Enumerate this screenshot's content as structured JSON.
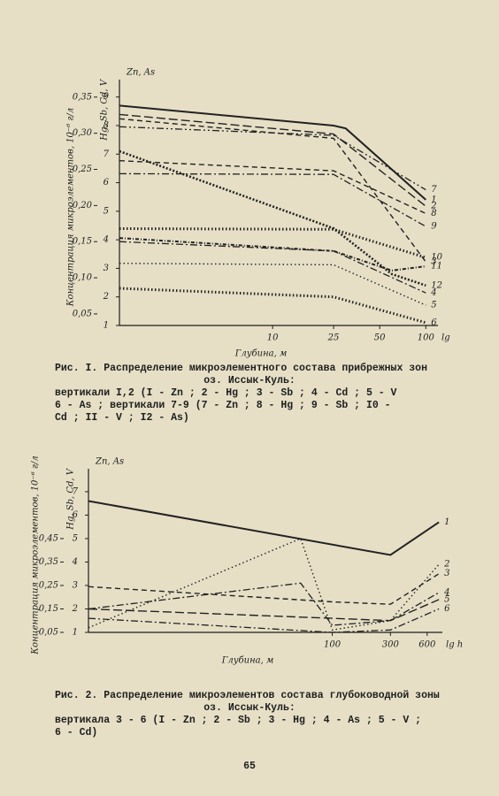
{
  "chart_data": [
    {
      "type": "line",
      "color": "#222222",
      "log_x": true,
      "grid": false,
      "y_label": "Zn, As",
      "y2_label": "Hg, Sb, Cd, V",
      "y_title": "Концентрация микроэлементов, 10⁻⁶ г/л",
      "x_label": "Глубина, м",
      "x_unit": "lg",
      "xlim": [
        1,
        120
      ],
      "xticks": [
        10,
        25,
        50,
        100
      ],
      "ylim": [
        1,
        9.3
      ],
      "yticks": [
        1,
        2,
        3,
        4,
        5,
        6,
        7,
        8,
        9
      ],
      "y2lim": [
        0.034,
        0.362
      ],
      "y2ticks": [
        {
          "value": 0.05,
          "label": "0,05"
        },
        {
          "value": 0.1,
          "label": "0,10"
        },
        {
          "value": 0.15,
          "label": "0,15"
        },
        {
          "value": 0.2,
          "label": "0,20"
        },
        {
          "value": 0.25,
          "label": "0,25"
        },
        {
          "value": 0.3,
          "label": "0,30"
        },
        {
          "value": 0.35,
          "label": "0,35"
        }
      ],
      "series": [
        {
          "name": "1",
          "style": "solid-heavy",
          "axis": "y",
          "x": [
            1,
            25,
            30,
            100
          ],
          "values": [
            8.7,
            8.0,
            7.9,
            5.4
          ]
        },
        {
          "name": "2",
          "style": "long-dash",
          "axis": "y2",
          "x": [
            1,
            25,
            100
          ],
          "values": [
            0.326,
            0.299,
            0.199
          ]
        },
        {
          "name": "3",
          "style": "dashed",
          "axis": "y2",
          "x": [
            1,
            25,
            100
          ],
          "values": [
            0.32,
            0.293,
            0.122
          ]
        },
        {
          "name": "4",
          "style": "dash-dot",
          "axis": "y2",
          "x": [
            1,
            25,
            100
          ],
          "values": [
            0.15,
            0.137,
            0.079
          ]
        },
        {
          "name": "5",
          "style": "dotted",
          "axis": "y2",
          "x": [
            1,
            25,
            100
          ],
          "values": [
            0.12,
            0.118,
            0.062
          ]
        },
        {
          "name": "6",
          "style": "crossed",
          "axis": "y",
          "x": [
            1,
            25,
            100
          ],
          "values": [
            2.3,
            2.0,
            1.1
          ]
        },
        {
          "name": "7",
          "style": "dash-dot-dot",
          "axis": "y",
          "x": [
            1,
            25,
            100
          ],
          "values": [
            7.96,
            7.66,
            5.75
          ]
        },
        {
          "name": "8",
          "style": "dashed",
          "axis": "y2",
          "x": [
            1,
            25,
            100
          ],
          "values": [
            0.262,
            0.248,
            0.189
          ]
        },
        {
          "name": "9",
          "style": "dash-dot",
          "axis": "y2",
          "x": [
            1,
            25,
            100
          ],
          "values": [
            0.244,
            0.243,
            0.171
          ]
        },
        {
          "name": "10",
          "style": "crossed",
          "axis": "y2",
          "x": [
            1,
            25,
            100
          ],
          "values": [
            0.168,
            0.167,
            0.128
          ]
        },
        {
          "name": "11",
          "style": "triangle",
          "axis": "y2",
          "x": [
            1,
            25,
            60,
            100
          ],
          "values": [
            0.155,
            0.137,
            0.11,
            0.116
          ]
        },
        {
          "name": "12",
          "style": "heavy-dotted",
          "axis": "y",
          "x": [
            1,
            25,
            60,
            100
          ],
          "values": [
            7.1,
            4.4,
            2.8,
            2.4
          ]
        }
      ]
    },
    {
      "type": "line",
      "color": "#222222",
      "log_x": true,
      "grid": false,
      "y_label": "Zn, As",
      "y2_label": "Hg, Sb, Cd, V",
      "y_title": "Концентрация микроэлементов, 10⁻⁶ г/л",
      "x_label": "Глубина, м",
      "x_unit": "lg h",
      "xlim": [
        1,
        800
      ],
      "xticks": [
        100,
        300,
        600
      ],
      "ylim": [
        1,
        7.6
      ],
      "yticks": [
        1,
        2,
        3,
        4,
        5,
        6,
        7
      ],
      "y2lim": [
        0.05,
        0.71
      ],
      "y2ticks": [
        {
          "value": 0.05,
          "label": "0,05"
        },
        {
          "value": 0.15,
          "label": "0,15"
        },
        {
          "value": 0.25,
          "label": "0,25"
        },
        {
          "value": 0.35,
          "label": "0,35"
        },
        {
          "value": 0.45,
          "label": "0,45"
        }
      ],
      "series": [
        {
          "name": "1",
          "style": "solid-heavy",
          "axis": "y",
          "x": [
            1,
            300,
            750
          ],
          "values": [
            6.6,
            4.3,
            5.7
          ]
        },
        {
          "name": "2",
          "style": "dotted",
          "axis": "y2",
          "x": [
            1,
            55,
            100,
            300,
            750
          ],
          "values": [
            0.07,
            0.45,
            0.06,
            0.1,
            0.34
          ]
        },
        {
          "name": "3",
          "style": "dashed",
          "axis": "y2",
          "x": [
            1,
            100,
            300,
            750
          ],
          "values": [
            0.245,
            0.18,
            0.17,
            0.3
          ]
        },
        {
          "name": "4",
          "style": "dash-dot",
          "axis": "y",
          "x": [
            1,
            55,
            100,
            300,
            750
          ],
          "values": [
            2.0,
            3.1,
            1.3,
            1.5,
            2.7
          ]
        },
        {
          "name": "5",
          "style": "long-dash",
          "axis": "y2",
          "x": [
            1,
            100,
            300,
            750
          ],
          "values": [
            0.15,
            0.11,
            0.1,
            0.19
          ]
        },
        {
          "name": "6",
          "style": "dash-dot",
          "axis": "y2",
          "x": [
            1,
            100,
            300,
            750
          ],
          "values": [
            0.11,
            0.05,
            0.06,
            0.15
          ]
        }
      ]
    }
  ],
  "captions": [
    [
      "Рис. I. Распределение микроэлементного состава прибрежных зон",
      "оз. Иссык-Куль:",
      "вертикали I,2 (I - Zn ; 2 - Hg ; 3 - Sb ; 4 - Cd ; 5 - V",
      "6 - As ; вертикали 7-9 (7 - Zn ; 8 - Hg ; 9 - Sb ; I0 -",
      "Cd ; II - V ; I2 - As)"
    ],
    [
      "Рис. 2. Распределение микроэлементов состава глубоководной зоны",
      "оз. Иссык-Куль:",
      "вертикала 3 - 6 (I - Zn ; 2 - Sb ; 3 - Hg ; 4 - As ; 5 - V ;",
      "6 - Cd)"
    ]
  ],
  "page_number": "65"
}
